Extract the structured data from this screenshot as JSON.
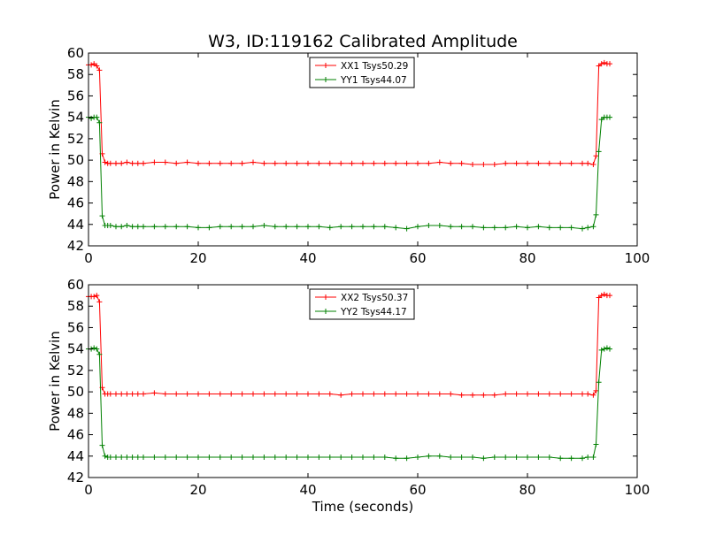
{
  "title": "W3, ID:119162 Calibrated Amplitude",
  "colors": {
    "red": "#ff0000",
    "green": "#008000"
  },
  "chart_data": [
    {
      "type": "line",
      "title": "W3, ID:119162 Calibrated Amplitude",
      "xlabel": "",
      "ylabel": "Power in Kelvin",
      "xlim": [
        0,
        100
      ],
      "ylim": [
        42,
        60
      ],
      "xticks": [
        0,
        20,
        40,
        60,
        80,
        100
      ],
      "yticks": [
        42,
        44,
        46,
        48,
        50,
        52,
        54,
        56,
        58,
        60
      ],
      "grid": false,
      "legend_position": "top-center",
      "marker": "plus",
      "series": [
        {
          "name": "XX1 Tsys50.29",
          "color": "#ff0000",
          "x": [
            0,
            0.5,
            1,
            1.5,
            2,
            2.5,
            3,
            3.5,
            4,
            5,
            6,
            7,
            8,
            9,
            10,
            12,
            14,
            16,
            18,
            20,
            22,
            24,
            26,
            28,
            30,
            32,
            34,
            36,
            38,
            40,
            42,
            44,
            46,
            48,
            50,
            52,
            54,
            56,
            58,
            60,
            62,
            64,
            66,
            68,
            70,
            72,
            74,
            76,
            78,
            80,
            82,
            84,
            86,
            88,
            90,
            91,
            92,
            92.5,
            93,
            93.5,
            94,
            94.5,
            95
          ],
          "y": [
            58.9,
            58.9,
            59.0,
            58.8,
            58.4,
            50.6,
            49.8,
            49.7,
            49.7,
            49.7,
            49.7,
            49.8,
            49.7,
            49.7,
            49.7,
            49.8,
            49.8,
            49.7,
            49.8,
            49.7,
            49.7,
            49.7,
            49.7,
            49.7,
            49.8,
            49.7,
            49.7,
            49.7,
            49.7,
            49.7,
            49.7,
            49.7,
            49.7,
            49.7,
            49.7,
            49.7,
            49.7,
            49.7,
            49.7,
            49.7,
            49.7,
            49.8,
            49.7,
            49.7,
            49.6,
            49.6,
            49.6,
            49.7,
            49.7,
            49.7,
            49.7,
            49.7,
            49.7,
            49.7,
            49.7,
            49.7,
            49.6,
            50.4,
            58.8,
            59.0,
            59.1,
            59.0,
            59.0
          ]
        },
        {
          "name": "YY1 Tsys44.07",
          "color": "#008000",
          "x": [
            0,
            0.5,
            1,
            1.5,
            2,
            2.5,
            3,
            3.5,
            4,
            5,
            6,
            7,
            8,
            9,
            10,
            12,
            14,
            16,
            18,
            20,
            22,
            24,
            26,
            28,
            30,
            32,
            34,
            36,
            38,
            40,
            42,
            44,
            46,
            48,
            50,
            52,
            54,
            56,
            58,
            60,
            62,
            64,
            66,
            68,
            70,
            72,
            74,
            76,
            78,
            80,
            82,
            84,
            86,
            88,
            90,
            91,
            92,
            92.5,
            93,
            93.5,
            94,
            94.5,
            95
          ],
          "y": [
            54.0,
            53.9,
            54.0,
            54.0,
            53.5,
            44.8,
            43.9,
            43.9,
            43.9,
            43.8,
            43.8,
            43.9,
            43.8,
            43.8,
            43.8,
            43.8,
            43.8,
            43.8,
            43.8,
            43.7,
            43.7,
            43.8,
            43.8,
            43.8,
            43.8,
            43.9,
            43.8,
            43.8,
            43.8,
            43.8,
            43.8,
            43.7,
            43.8,
            43.8,
            43.8,
            43.8,
            43.8,
            43.7,
            43.6,
            43.8,
            43.9,
            43.9,
            43.8,
            43.8,
            43.8,
            43.7,
            43.7,
            43.7,
            43.8,
            43.7,
            43.8,
            43.7,
            43.7,
            43.7,
            43.6,
            43.7,
            43.8,
            44.9,
            50.8,
            53.8,
            54.0,
            54.0,
            54.0
          ]
        }
      ]
    },
    {
      "type": "line",
      "title": "",
      "xlabel": "Time (seconds)",
      "ylabel": "Power in Kelvin",
      "xlim": [
        0,
        100
      ],
      "ylim": [
        42,
        60
      ],
      "xticks": [
        0,
        20,
        40,
        60,
        80,
        100
      ],
      "yticks": [
        42,
        44,
        46,
        48,
        50,
        52,
        54,
        56,
        58,
        60
      ],
      "grid": false,
      "legend_position": "top-center",
      "marker": "plus",
      "series": [
        {
          "name": "XX2 Tsys50.37",
          "color": "#ff0000",
          "x": [
            0,
            0.5,
            1,
            1.5,
            2,
            2.5,
            3,
            3.5,
            4,
            5,
            6,
            7,
            8,
            9,
            10,
            12,
            14,
            16,
            18,
            20,
            22,
            24,
            26,
            28,
            30,
            32,
            34,
            36,
            38,
            40,
            42,
            44,
            46,
            48,
            50,
            52,
            54,
            56,
            58,
            60,
            62,
            64,
            66,
            68,
            70,
            72,
            74,
            76,
            78,
            80,
            82,
            84,
            86,
            88,
            90,
            91,
            92,
            92.5,
            93,
            93.5,
            94,
            94.5,
            95
          ],
          "y": [
            58.9,
            58.9,
            58.9,
            59.0,
            58.4,
            50.4,
            49.8,
            49.8,
            49.8,
            49.8,
            49.8,
            49.8,
            49.8,
            49.8,
            49.8,
            49.9,
            49.8,
            49.8,
            49.8,
            49.8,
            49.8,
            49.8,
            49.8,
            49.8,
            49.8,
            49.8,
            49.8,
            49.8,
            49.8,
            49.8,
            49.8,
            49.8,
            49.7,
            49.8,
            49.8,
            49.8,
            49.8,
            49.8,
            49.8,
            49.8,
            49.8,
            49.8,
            49.8,
            49.7,
            49.7,
            49.7,
            49.7,
            49.8,
            49.8,
            49.8,
            49.8,
            49.8,
            49.8,
            49.8,
            49.8,
            49.8,
            49.7,
            50.1,
            58.8,
            59.0,
            59.1,
            59.0,
            59.0
          ]
        },
        {
          "name": "YY2 Tsys44.17",
          "color": "#008000",
          "x": [
            0,
            0.5,
            1,
            1.5,
            2,
            2.5,
            3,
            3.5,
            4,
            5,
            6,
            7,
            8,
            9,
            10,
            12,
            14,
            16,
            18,
            20,
            22,
            24,
            26,
            28,
            30,
            32,
            34,
            36,
            38,
            40,
            42,
            44,
            46,
            48,
            50,
            52,
            54,
            56,
            58,
            60,
            62,
            64,
            66,
            68,
            70,
            72,
            74,
            76,
            78,
            80,
            82,
            84,
            86,
            88,
            90,
            91,
            92,
            92.5,
            93,
            93.5,
            94,
            94.5,
            95
          ],
          "y": [
            54.0,
            54.0,
            54.1,
            54.0,
            53.5,
            45.0,
            44.0,
            43.9,
            43.9,
            43.9,
            43.9,
            43.9,
            43.9,
            43.9,
            43.9,
            43.9,
            43.9,
            43.9,
            43.9,
            43.9,
            43.9,
            43.9,
            43.9,
            43.9,
            43.9,
            43.9,
            43.9,
            43.9,
            43.9,
            43.9,
            43.9,
            43.9,
            43.9,
            43.9,
            43.9,
            43.9,
            43.9,
            43.8,
            43.8,
            43.9,
            44.0,
            44.0,
            43.9,
            43.9,
            43.9,
            43.8,
            43.9,
            43.9,
            43.9,
            43.9,
            43.9,
            43.9,
            43.8,
            43.8,
            43.8,
            43.9,
            43.9,
            45.1,
            50.9,
            53.9,
            54.0,
            54.1,
            54.0
          ]
        }
      ]
    }
  ]
}
